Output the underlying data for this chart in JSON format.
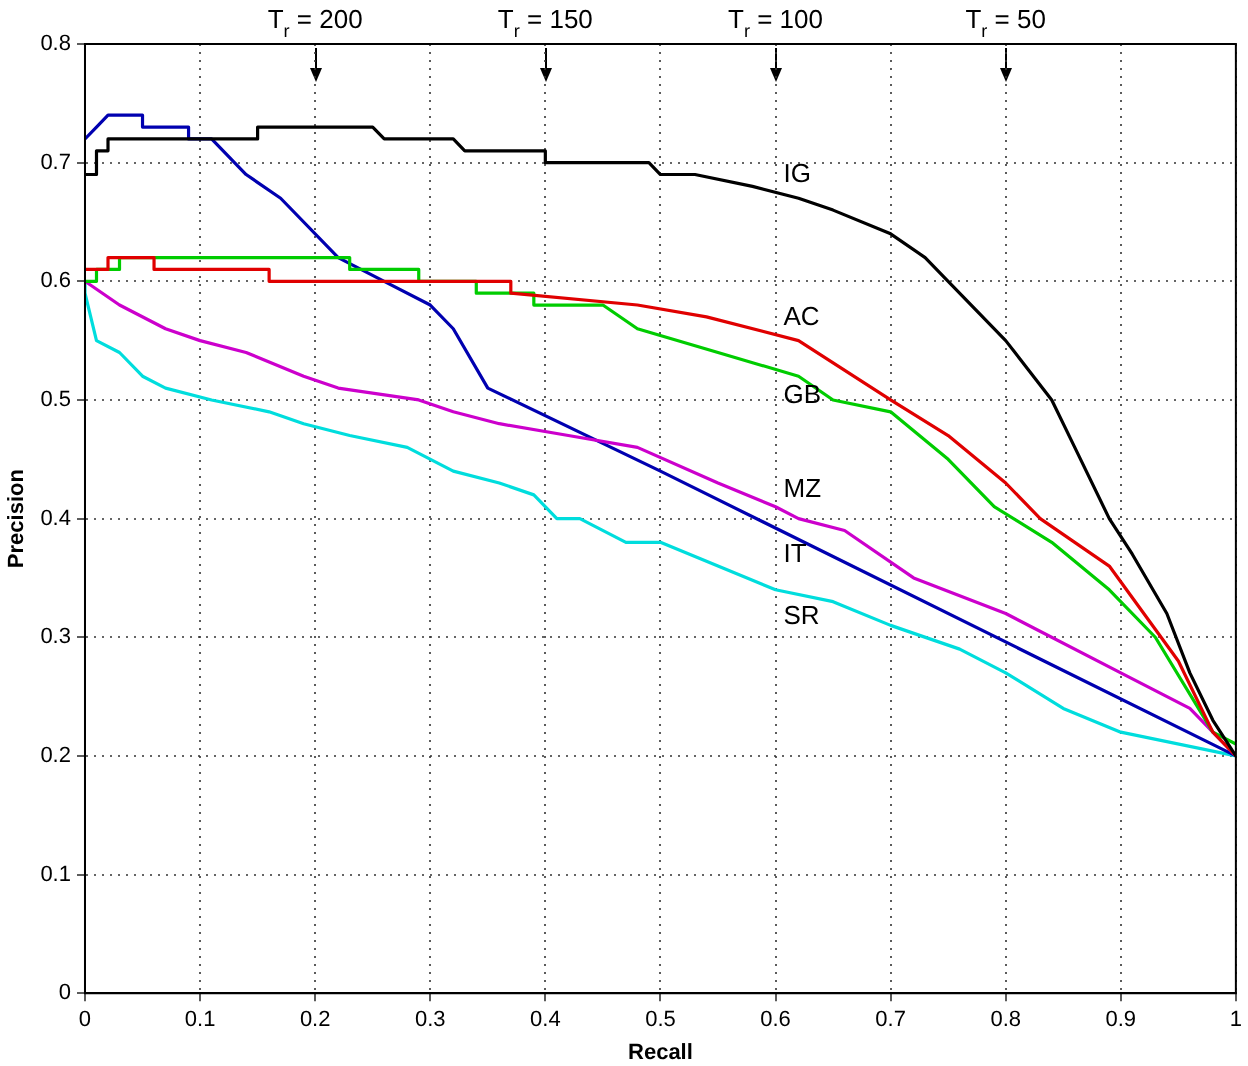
{
  "chart_data": {
    "type": "line",
    "xlabel": "Recall",
    "ylabel": "Precision",
    "xlim": [
      0,
      1
    ],
    "ylim": [
      0,
      0.8
    ],
    "xticks": [
      0,
      0.1,
      0.2,
      0.3,
      0.4,
      0.5,
      0.6,
      0.7,
      0.8,
      0.9,
      1
    ],
    "yticks": [
      0,
      0.1,
      0.2,
      0.3,
      0.4,
      0.5,
      0.6,
      0.7,
      0.8
    ],
    "grid": true,
    "legend": false,
    "marker": "none",
    "line_style": "solid",
    "annotations": [
      "T$_{r}$ = 200",
      "T$_{r}$ = 150",
      "T$_{r}$ = 100",
      "T$_{r}$ = 50"
    ],
    "series": [
      {
        "name": "IG",
        "color": "#000000",
        "x": [
          0,
          0.01,
          0.01,
          0.02,
          0.02,
          0.15,
          0.15,
          0.25,
          0.26,
          0.32,
          0.33,
          0.4,
          0.4,
          0.49,
          0.5,
          0.53,
          0.58,
          0.62,
          0.65,
          0.7,
          0.73,
          0.75,
          0.8,
          0.84,
          0.86,
          0.89,
          0.91,
          0.94,
          0.96,
          0.98,
          1
        ],
        "values": [
          0.69,
          0.69,
          0.71,
          0.71,
          0.72,
          0.72,
          0.73,
          0.73,
          0.72,
          0.72,
          0.71,
          0.71,
          0.7,
          0.7,
          0.69,
          0.69,
          0.68,
          0.67,
          0.66,
          0.64,
          0.62,
          0.6,
          0.55,
          0.5,
          0.46,
          0.4,
          0.37,
          0.32,
          0.27,
          0.23,
          0.2
        ]
      },
      {
        "name": "AC",
        "color": "#e00000",
        "x": [
          0,
          0.02,
          0.02,
          0.06,
          0.06,
          0.16,
          0.16,
          0.37,
          0.37,
          0.48,
          0.54,
          0.62,
          0.7,
          0.75,
          0.8,
          0.83,
          0.89,
          0.95,
          0.98,
          1
        ],
        "values": [
          0.61,
          0.61,
          0.62,
          0.62,
          0.61,
          0.61,
          0.6,
          0.6,
          0.59,
          0.58,
          0.57,
          0.55,
          0.5,
          0.47,
          0.43,
          0.4,
          0.36,
          0.28,
          0.22,
          0.2
        ]
      },
      {
        "name": "GB",
        "color": "#00cc00",
        "x": [
          0,
          0.01,
          0.01,
          0.03,
          0.03,
          0.23,
          0.23,
          0.29,
          0.29,
          0.34,
          0.34,
          0.39,
          0.39,
          0.45,
          0.48,
          0.55,
          0.62,
          0.65,
          0.7,
          0.75,
          0.79,
          0.84,
          0.89,
          0.93,
          0.98,
          1
        ],
        "values": [
          0.6,
          0.6,
          0.61,
          0.61,
          0.62,
          0.62,
          0.61,
          0.61,
          0.6,
          0.6,
          0.59,
          0.59,
          0.58,
          0.58,
          0.56,
          0.54,
          0.52,
          0.5,
          0.49,
          0.45,
          0.41,
          0.38,
          0.34,
          0.3,
          0.22,
          0.21
        ]
      },
      {
        "name": "MZ",
        "color": "#cc00cc",
        "x": [
          0,
          0.03,
          0.07,
          0.1,
          0.14,
          0.19,
          0.22,
          0.29,
          0.32,
          0.36,
          0.42,
          0.48,
          0.55,
          0.6,
          0.62,
          0.66,
          0.72,
          0.8,
          0.9,
          0.96,
          1
        ],
        "values": [
          0.6,
          0.58,
          0.56,
          0.55,
          0.54,
          0.52,
          0.51,
          0.5,
          0.49,
          0.48,
          0.47,
          0.46,
          0.43,
          0.41,
          0.4,
          0.39,
          0.35,
          0.32,
          0.27,
          0.24,
          0.2
        ]
      },
      {
        "name": "IT",
        "color": "#0000b0",
        "x": [
          0,
          0.01,
          0.02,
          0.05,
          0.05,
          0.09,
          0.09,
          0.11,
          0.14,
          0.17,
          0.22,
          0.26,
          0.3,
          0.32,
          0.35,
          0.5,
          1
        ],
        "values": [
          0.72,
          0.73,
          0.74,
          0.74,
          0.73,
          0.73,
          0.72,
          0.72,
          0.69,
          0.67,
          0.62,
          0.6,
          0.58,
          0.56,
          0.51,
          0.44,
          0.2
        ]
      },
      {
        "name": "SR",
        "color": "#00dddd",
        "x": [
          0,
          0,
          0.01,
          0.03,
          0.05,
          0.07,
          0.11,
          0.16,
          0.19,
          0.23,
          0.28,
          0.32,
          0.36,
          0.39,
          0.41,
          0.43,
          0.47,
          0.5,
          0.55,
          0.6,
          0.65,
          0.7,
          0.76,
          0.8,
          0.85,
          0.9,
          1
        ],
        "values": [
          0.6,
          0.59,
          0.55,
          0.54,
          0.52,
          0.51,
          0.5,
          0.49,
          0.48,
          0.47,
          0.46,
          0.44,
          0.43,
          0.42,
          0.4,
          0.4,
          0.38,
          0.38,
          0.36,
          0.34,
          0.33,
          0.31,
          0.29,
          0.27,
          0.24,
          0.22,
          0.2
        ]
      }
    ]
  }
}
